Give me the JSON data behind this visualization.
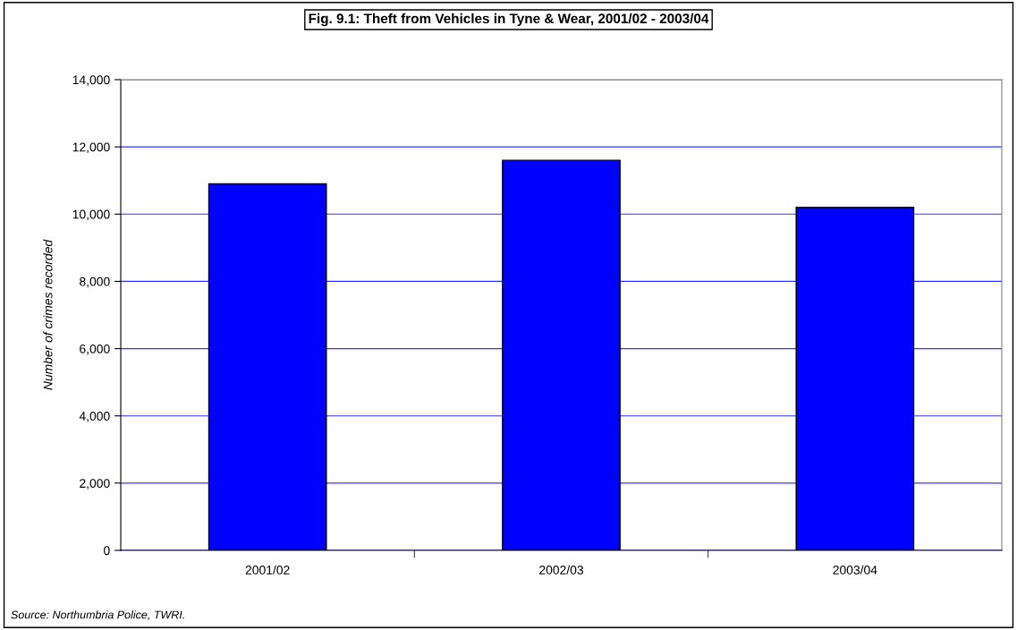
{
  "chart_data": {
    "type": "bar",
    "title": "Fig. 9.1: Theft from Vehicles in Tyne & Wear, 2001/02 - 2003/04",
    "ylabel": "Number of crimes recorded",
    "categories": [
      "2001/02",
      "2002/03",
      "2003/04"
    ],
    "values": [
      10900,
      11600,
      10200
    ],
    "color": "#0000ff",
    "ylim": [
      0,
      14000
    ],
    "yticks": [
      {
        "value": 0,
        "label": "0"
      },
      {
        "value": 2000,
        "label": "2,000"
      },
      {
        "value": 4000,
        "label": "4,000"
      },
      {
        "value": 6000,
        "label": "6,000"
      },
      {
        "value": 8000,
        "label": "8,000"
      },
      {
        "value": 10000,
        "label": "10,000"
      },
      {
        "value": 12000,
        "label": "12,000"
      },
      {
        "value": 14000,
        "label": "14,000"
      }
    ],
    "grid": "y",
    "legend": false,
    "annotations": [
      "Source: Northumbria Police, TWRI."
    ]
  }
}
